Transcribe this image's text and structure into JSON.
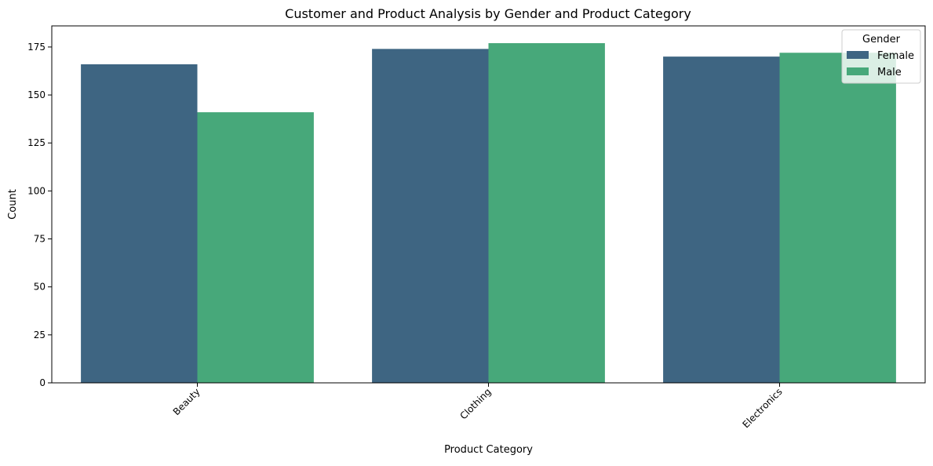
{
  "chart_data": {
    "type": "bar",
    "title": "Customer and Product Analysis by Gender and Product Category",
    "xlabel": "Product Category",
    "ylabel": "Count",
    "categories": [
      "Beauty",
      "Clothing",
      "Electronics"
    ],
    "series": [
      {
        "name": "Female",
        "values": [
          166,
          174,
          170
        ],
        "color": "#3e6582"
      },
      {
        "name": "Male",
        "values": [
          141,
          177,
          172
        ],
        "color": "#47a87a"
      }
    ],
    "ylim": [
      0,
      186
    ],
    "yticks": [
      0,
      25,
      50,
      75,
      100,
      125,
      150,
      175
    ],
    "x_tick_rotation": 45,
    "legend": {
      "title": "Gender",
      "position": "top-right"
    },
    "grid": false
  }
}
